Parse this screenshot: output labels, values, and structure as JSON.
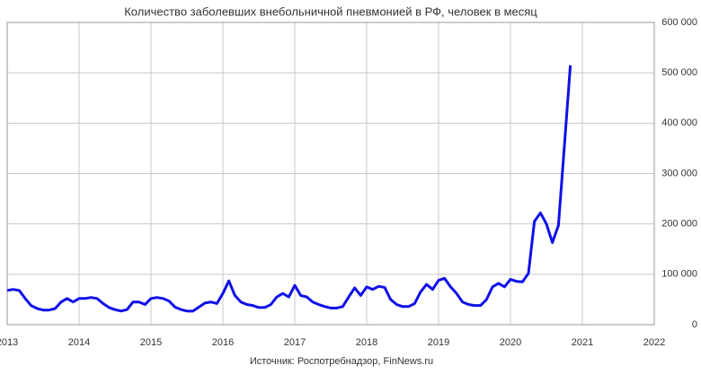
{
  "chart_data": {
    "type": "line",
    "title": "Количество заболевших внебольничной пневмонией в РФ, человек в месяц",
    "source": "Источник: Роспотребнадзор, FinNews.ru",
    "x": [
      2013,
      2013.083,
      2013.167,
      2013.25,
      2013.333,
      2013.417,
      2013.5,
      2013.583,
      2013.667,
      2013.75,
      2013.833,
      2013.917,
      2014,
      2014.083,
      2014.167,
      2014.25,
      2014.333,
      2014.417,
      2014.5,
      2014.583,
      2014.667,
      2014.75,
      2014.833,
      2014.917,
      2015,
      2015.083,
      2015.167,
      2015.25,
      2015.333,
      2015.417,
      2015.5,
      2015.583,
      2015.667,
      2015.75,
      2015.833,
      2015.917,
      2016,
      2016.083,
      2016.167,
      2016.25,
      2016.333,
      2016.417,
      2016.5,
      2016.583,
      2016.667,
      2016.75,
      2016.833,
      2016.917,
      2017,
      2017.083,
      2017.167,
      2017.25,
      2017.333,
      2017.417,
      2017.5,
      2017.583,
      2017.667,
      2017.75,
      2017.833,
      2017.917,
      2018,
      2018.083,
      2018.167,
      2018.25,
      2018.333,
      2018.417,
      2018.5,
      2018.583,
      2018.667,
      2018.75,
      2018.833,
      2018.917,
      2019,
      2019.083,
      2019.167,
      2019.25,
      2019.333,
      2019.417,
      2019.5,
      2019.583,
      2019.667,
      2019.75,
      2019.833,
      2019.917,
      2020,
      2020.083,
      2020.167,
      2020.25,
      2020.333,
      2020.417,
      2020.5,
      2020.583,
      2020.667,
      2020.75,
      2020.833
    ],
    "series": [
      {
        "color": "#1010e8",
        "values": [
          68000,
          70000,
          68000,
          52000,
          38000,
          32000,
          29000,
          29000,
          32000,
          45000,
          52000,
          45000,
          52000,
          52000,
          54000,
          52000,
          42000,
          34000,
          30000,
          27000,
          30000,
          45000,
          45000,
          40000,
          52000,
          54000,
          52000,
          47000,
          35000,
          30000,
          27000,
          27000,
          35000,
          43000,
          45000,
          42000,
          62000,
          87000,
          58000,
          45000,
          40000,
          38000,
          34000,
          34000,
          40000,
          55000,
          62000,
          55000,
          78000,
          58000,
          55000,
          45000,
          40000,
          36000,
          33000,
          33000,
          36000,
          55000,
          73000,
          58000,
          75000,
          70000,
          76000,
          74000,
          50000,
          40000,
          36000,
          36000,
          42000,
          65000,
          80000,
          70000,
          88000,
          92000,
          75000,
          62000,
          45000,
          40000,
          38000,
          38000,
          50000,
          75000,
          82000,
          75000,
          90000,
          86000,
          85000,
          102000,
          205000,
          222000,
          200000,
          163000,
          197000,
          355000,
          515000
        ]
      }
    ],
    "xlim": [
      2013,
      2022
    ],
    "xticks": [
      2013,
      2014,
      2015,
      2016,
      2017,
      2018,
      2019,
      2020,
      2021,
      2022
    ],
    "ylim": [
      0,
      600000
    ],
    "yticks": [
      0,
      {
        "value": 100000,
        "label": "100 000"
      },
      {
        "value": 200000,
        "label": "200 000"
      },
      {
        "value": 300000,
        "label": "300 000"
      },
      {
        "value": 400000,
        "label": "400 000"
      },
      {
        "value": 500000,
        "label": "500 000"
      },
      {
        "value": 600000,
        "label": "600 000"
      }
    ],
    "grid": true
  }
}
